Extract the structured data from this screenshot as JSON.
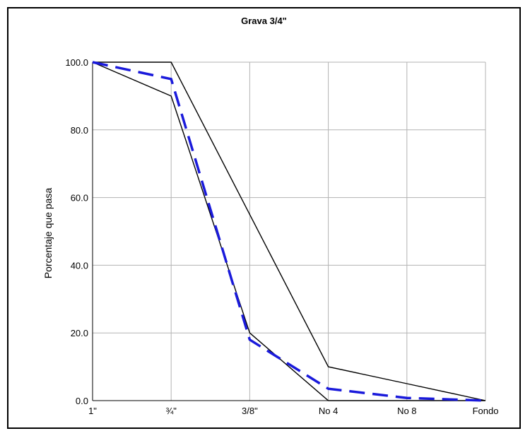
{
  "chart_data": {
    "type": "line",
    "title": "Grava 3/4\"",
    "xlabel": "",
    "ylabel": "Porcentaje  que pasa",
    "categories": [
      "1\"",
      "¾\"",
      "3/8\"",
      "No 4",
      "No 8",
      "Fondo"
    ],
    "ylim": [
      0,
      100
    ],
    "yticks": [
      "0.0",
      "20.0",
      "40.0",
      "60.0",
      "80.0",
      "100.0"
    ],
    "grid": true,
    "series": [
      {
        "role": "upper-limit",
        "color": "#000000",
        "dash": "solid",
        "values": [
          100,
          100,
          55,
          10,
          5,
          0
        ]
      },
      {
        "role": "lower-limit",
        "color": "#000000",
        "dash": "solid",
        "values": [
          100,
          90,
          20,
          0,
          0,
          0
        ]
      },
      {
        "role": "sample",
        "color": "#1a1adb",
        "dash": "dashed",
        "values": [
          100,
          95,
          18,
          3.5,
          0.8,
          0
        ]
      }
    ]
  }
}
